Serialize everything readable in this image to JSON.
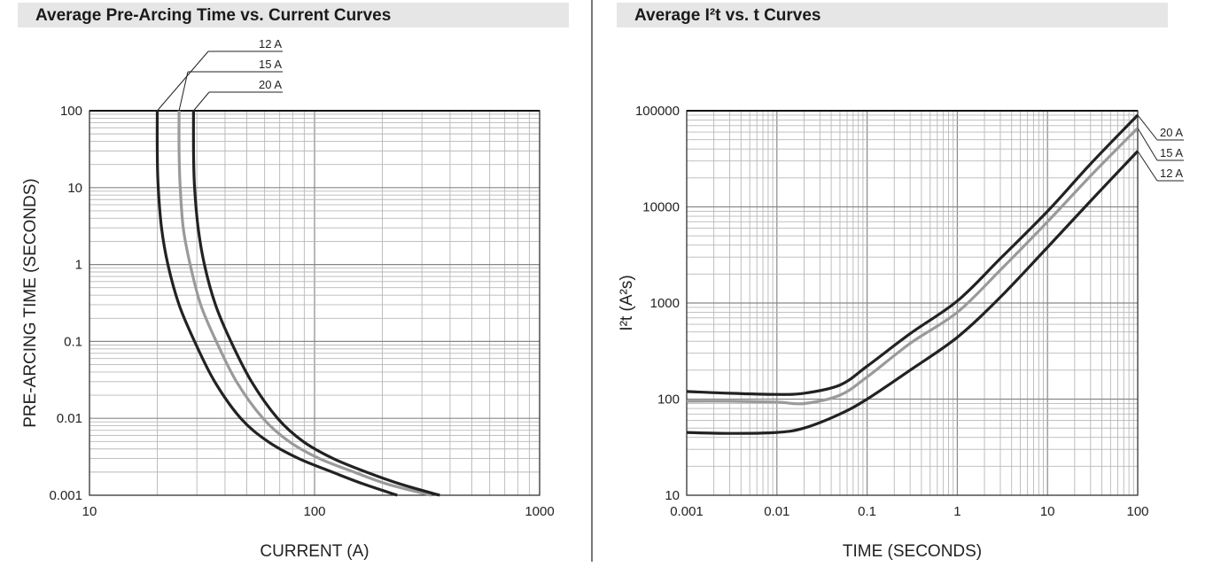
{
  "chart_data": [
    {
      "type": "line",
      "title": "Average Pre-Arcing Time vs. Current Curves",
      "xlabel": "CURRENT (A)",
      "ylabel": "PRE-ARCING TIME (SECONDS)",
      "xscale": "log",
      "yscale": "log",
      "xlim": [
        10,
        1000
      ],
      "ylim": [
        0.001,
        100
      ],
      "xticks": [
        "10",
        "100",
        "1000"
      ],
      "yticks": [
        "100",
        "10",
        "1",
        "0.1",
        "0.01",
        "0.001"
      ],
      "grid": true,
      "legend_placement": "top-left, above plot",
      "series": [
        {
          "name": "12 A",
          "color": "#222222",
          "x": [
            20,
            20,
            20.2,
            20.9,
            22.3,
            25,
            29.3,
            36,
            47,
            62,
            85,
            120,
            165,
            233
          ],
          "y": [
            100,
            30,
            10,
            3,
            1,
            0.3,
            0.1,
            0.03,
            0.01,
            0.005,
            0.003,
            0.002,
            0.0014,
            0.001
          ]
        },
        {
          "name": "15 A",
          "color": "#9a9a9a",
          "x": [
            25,
            25,
            25.3,
            26.1,
            28,
            31.2,
            36.6,
            45,
            59,
            77,
            105,
            150,
            210,
            330
          ],
          "y": [
            100,
            30,
            10,
            3,
            1,
            0.3,
            0.1,
            0.03,
            0.01,
            0.005,
            0.003,
            0.002,
            0.0014,
            0.001
          ]
        },
        {
          "name": "20 A",
          "color": "#222222",
          "x": [
            29,
            29,
            29.3,
            30.4,
            32.4,
            36.3,
            42.5,
            52.5,
            68.5,
            89,
            121,
            170,
            240,
            360
          ],
          "y": [
            100,
            30,
            10,
            3,
            1,
            0.3,
            0.1,
            0.03,
            0.01,
            0.005,
            0.003,
            0.002,
            0.0014,
            0.001
          ]
        }
      ]
    },
    {
      "type": "line",
      "title": "Average I²t vs. t Curves",
      "xlabel": "TIME (SECONDS)",
      "ylabel": "I²t (A²s)",
      "xscale": "log",
      "yscale": "log",
      "xlim": [
        0.001,
        100
      ],
      "ylim": [
        10,
        100000
      ],
      "xticks": [
        "0.001",
        "0.01",
        "0.1",
        "1",
        "10",
        "100"
      ],
      "yticks": [
        "100000",
        "10000",
        "1000",
        "100",
        "10"
      ],
      "grid": true,
      "legend_placement": "right",
      "series": [
        {
          "name": "20 A",
          "color": "#222222",
          "x": [
            0.001,
            0.003,
            0.01,
            0.02,
            0.05,
            0.1,
            0.3,
            1,
            3,
            10,
            30,
            100
          ],
          "y": [
            120,
            115,
            112,
            115,
            140,
            220,
            480,
            1050,
            2900,
            9000,
            28000,
            90000
          ]
        },
        {
          "name": "15 A",
          "color": "#9a9a9a",
          "x": [
            0.001,
            0.003,
            0.01,
            0.02,
            0.05,
            0.1,
            0.3,
            1,
            3,
            10,
            30,
            100
          ],
          "y": [
            95,
            95,
            93,
            90,
            110,
            170,
            380,
            800,
            2200,
            7000,
            21000,
            66000
          ]
        },
        {
          "name": "12 A",
          "color": "#222222",
          "x": [
            0.001,
            0.003,
            0.01,
            0.02,
            0.05,
            0.1,
            0.3,
            1,
            3,
            10,
            30,
            100
          ],
          "y": [
            45,
            44,
            45,
            50,
            70,
            100,
            200,
            440,
            1150,
            3800,
            11500,
            38000
          ]
        }
      ]
    }
  ]
}
